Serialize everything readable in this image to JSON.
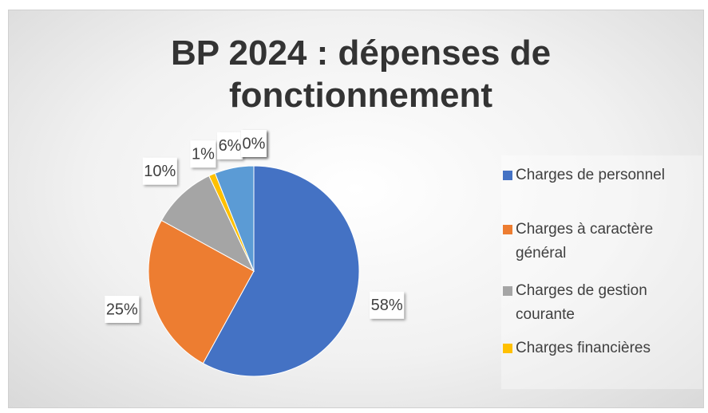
{
  "chart_data": {
    "type": "pie",
    "title": "BP 2024 : dépenses de fonctionnement",
    "categories": [
      "Charges de personnel",
      "Charges à caractère général",
      "Charges de gestion courante",
      "Charges financières",
      null,
      null,
      null
    ],
    "values": [
      58,
      25,
      10,
      1,
      6,
      0,
      0
    ],
    "value_labels": [
      "58%",
      "25%",
      "10%",
      "1%",
      "6%",
      "0%",
      "0%"
    ],
    "colors": [
      "#4472c4",
      "#ed7d31",
      "#a5a5a5",
      "#ffc000",
      "#5b9bd5",
      "#70ad47",
      "#264478"
    ],
    "legend": "right"
  }
}
